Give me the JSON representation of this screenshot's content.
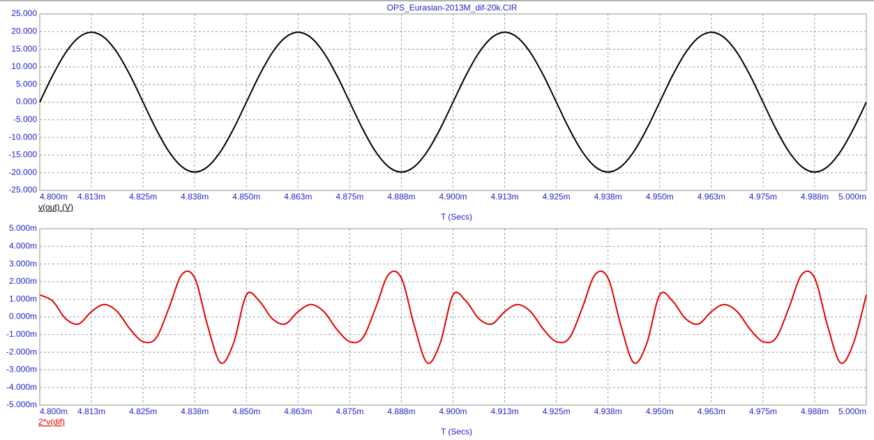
{
  "chart_data": [
    {
      "type": "line",
      "title": "OPS_Eurasian-2013M_dif-20k.CIR",
      "xlabel": "T (Secs)",
      "grid": true,
      "x": [
        0.0048,
        0.004803125,
        0.00480625,
        0.004809375,
        0.0048125,
        0.004815625,
        0.00481875,
        0.004821875,
        0.004825,
        0.004828125,
        0.00483125,
        0.004834375,
        0.0048375,
        0.004840625,
        0.00484375,
        0.004846875,
        0.00485,
        0.004853125,
        0.00485625,
        0.004859375,
        0.0048625,
        0.004865625,
        0.00486875,
        0.004871875,
        0.004875,
        0.004878125,
        0.00488125,
        0.004884375,
        0.0048875,
        0.004890625,
        0.00489375,
        0.004896875,
        0.0049,
        0.004903125,
        0.00490625,
        0.004909375,
        0.0049125,
        0.004915625,
        0.00491875,
        0.004921875,
        0.004925,
        0.004928125,
        0.00493125,
        0.004934375,
        0.0049375,
        0.004940625,
        0.00494375,
        0.004946875,
        0.00495,
        0.004953125,
        0.00495625,
        0.004959375,
        0.0049625,
        0.004965625,
        0.00496875,
        0.004971875,
        0.004975,
        0.004978125,
        0.00498125,
        0.004984375,
        0.0049875,
        0.004990625,
        0.00499375,
        0.004996875,
        0.005
      ],
      "series": [
        {
          "name": "v(out) (V)",
          "color": "#000000",
          "label_color": "#000000",
          "values": [
            0,
            7.58,
            14,
            18.29,
            19.8,
            18.29,
            14,
            7.58,
            0,
            -7.58,
            -14,
            -18.29,
            -19.8,
            -18.29,
            -14,
            -7.58,
            0,
            7.58,
            14,
            18.29,
            19.8,
            18.29,
            14,
            7.58,
            0,
            -7.58,
            -14,
            -18.29,
            -19.8,
            -18.29,
            -14,
            -7.58,
            0,
            7.58,
            14,
            18.29,
            19.8,
            18.29,
            14,
            7.58,
            0,
            -7.58,
            -14,
            -18.29,
            -19.8,
            -18.29,
            -14,
            -7.58,
            0,
            7.58,
            14,
            18.29,
            19.8,
            18.29,
            14,
            7.58,
            0,
            -7.58,
            -14,
            -18.29,
            -19.8,
            -18.29,
            -14,
            -7.58,
            0
          ]
        }
      ],
      "xlim": [
        0.0048,
        0.005
      ],
      "xticks": [
        {
          "value": 0.0048,
          "label": "4.800m"
        },
        {
          "value": 0.0048125,
          "label": "4.813m"
        },
        {
          "value": 0.004825,
          "label": "4.825m"
        },
        {
          "value": 0.0048375,
          "label": "4.838m"
        },
        {
          "value": 0.00485,
          "label": "4.850m"
        },
        {
          "value": 0.0048625,
          "label": "4.863m"
        },
        {
          "value": 0.004875,
          "label": "4.875m"
        },
        {
          "value": 0.0048875,
          "label": "4.888m"
        },
        {
          "value": 0.0049,
          "label": "4.900m"
        },
        {
          "value": 0.0049125,
          "label": "4.913m"
        },
        {
          "value": 0.004925,
          "label": "4.925m"
        },
        {
          "value": 0.0049375,
          "label": "4.938m"
        },
        {
          "value": 0.00495,
          "label": "4.950m"
        },
        {
          "value": 0.0049625,
          "label": "4.963m"
        },
        {
          "value": 0.004975,
          "label": "4.975m"
        },
        {
          "value": 0.0049875,
          "label": "4.988m"
        },
        {
          "value": 0.005,
          "label": "5.000m"
        }
      ],
      "ylim": [
        -25,
        25
      ],
      "yticks": [
        {
          "value": 25,
          "label": "25.000"
        },
        {
          "value": 20,
          "label": "20.000"
        },
        {
          "value": 15,
          "label": "15.000"
        },
        {
          "value": 10,
          "label": "10.000"
        },
        {
          "value": 5,
          "label": "5.000"
        },
        {
          "value": 0,
          "label": "0.000"
        },
        {
          "value": -5,
          "label": "-5.000"
        },
        {
          "value": -10,
          "label": "-10.000"
        },
        {
          "value": -15,
          "label": "-15.000"
        },
        {
          "value": -20,
          "label": "-20.000"
        },
        {
          "value": -25,
          "label": "-25.000"
        }
      ]
    },
    {
      "type": "line",
      "xlabel": "T (Secs)",
      "grid": true,
      "x": [
        0.0048,
        0.004803125,
        0.00480625,
        0.004809375,
        0.0048125,
        0.004815625,
        0.00481875,
        0.004821875,
        0.004825,
        0.004828125,
        0.00483125,
        0.004834375,
        0.0048375,
        0.004840625,
        0.00484375,
        0.004846875,
        0.00485,
        0.004853125,
        0.00485625,
        0.004859375,
        0.0048625,
        0.004865625,
        0.00486875,
        0.004871875,
        0.004875,
        0.004878125,
        0.00488125,
        0.004884375,
        0.0048875,
        0.004890625,
        0.00489375,
        0.004896875,
        0.0049,
        0.004903125,
        0.00490625,
        0.004909375,
        0.0049125,
        0.004915625,
        0.00491875,
        0.004921875,
        0.004925,
        0.004928125,
        0.00493125,
        0.004934375,
        0.0049375,
        0.004940625,
        0.00494375,
        0.004946875,
        0.00495,
        0.004953125,
        0.00495625,
        0.004959375,
        0.0049625,
        0.004965625,
        0.00496875,
        0.004971875,
        0.004975,
        0.004978125,
        0.00498125,
        0.004984375,
        0.0049875,
        0.004990625,
        0.00499375,
        0.004996875,
        0.005
      ],
      "series": [
        {
          "name": "2*v(dif)",
          "color": "#e00000",
          "label_color": "#e00000",
          "values": [
            0.00125,
            0.0009,
            -0.0001,
            -0.0004,
            0.0003,
            0.0007,
            0.0003,
            -0.0007,
            -0.0014,
            -0.0012,
            0.0005,
            0.0024,
            0.0022,
            -0.0005,
            -0.0026,
            -0.0015,
            0.00125,
            0.0009,
            -0.0001,
            -0.0004,
            0.0003,
            0.0007,
            0.0003,
            -0.0007,
            -0.0014,
            -0.0012,
            0.0005,
            0.0024,
            0.0022,
            -0.0005,
            -0.0026,
            -0.0015,
            0.00125,
            0.0009,
            -0.0001,
            -0.0004,
            0.0003,
            0.0007,
            0.0003,
            -0.0007,
            -0.0014,
            -0.0012,
            0.0005,
            0.0024,
            0.0022,
            -0.0005,
            -0.0026,
            -0.0015,
            0.00125,
            0.0009,
            -0.0001,
            -0.0004,
            0.0003,
            0.0007,
            0.0003,
            -0.0007,
            -0.0014,
            -0.0012,
            0.0005,
            0.0024,
            0.0022,
            -0.0005,
            -0.0026,
            -0.0015,
            0.00125
          ]
        }
      ],
      "xlim": [
        0.0048,
        0.005
      ],
      "xticks": [
        {
          "value": 0.0048,
          "label": "4.800m"
        },
        {
          "value": 0.0048125,
          "label": "4.813m"
        },
        {
          "value": 0.004825,
          "label": "4.825m"
        },
        {
          "value": 0.0048375,
          "label": "4.838m"
        },
        {
          "value": 0.00485,
          "label": "4.850m"
        },
        {
          "value": 0.0048625,
          "label": "4.863m"
        },
        {
          "value": 0.004875,
          "label": "4.875m"
        },
        {
          "value": 0.0048875,
          "label": "4.888m"
        },
        {
          "value": 0.0049,
          "label": "4.900m"
        },
        {
          "value": 0.0049125,
          "label": "4.913m"
        },
        {
          "value": 0.004925,
          "label": "4.925m"
        },
        {
          "value": 0.0049375,
          "label": "4.938m"
        },
        {
          "value": 0.00495,
          "label": "4.950m"
        },
        {
          "value": 0.0049625,
          "label": "4.963m"
        },
        {
          "value": 0.004975,
          "label": "4.975m"
        },
        {
          "value": 0.0049875,
          "label": "4.988m"
        },
        {
          "value": 0.005,
          "label": "5.000m"
        }
      ],
      "ylim": [
        -0.005,
        0.005
      ],
      "yticks": [
        {
          "value": 0.005,
          "label": "5.000m"
        },
        {
          "value": 0.004,
          "label": "4.000m"
        },
        {
          "value": 0.003,
          "label": "3.000m"
        },
        {
          "value": 0.002,
          "label": "2.000m"
        },
        {
          "value": 0.001,
          "label": "1.000m"
        },
        {
          "value": 0,
          "label": "0.000m"
        },
        {
          "value": -0.001,
          "label": "-1.000m"
        },
        {
          "value": -0.002,
          "label": "-2.000m"
        },
        {
          "value": -0.003,
          "label": "-3.000m"
        },
        {
          "value": -0.004,
          "label": "-4.000m"
        },
        {
          "value": -0.005,
          "label": "-5.000m"
        }
      ]
    }
  ]
}
